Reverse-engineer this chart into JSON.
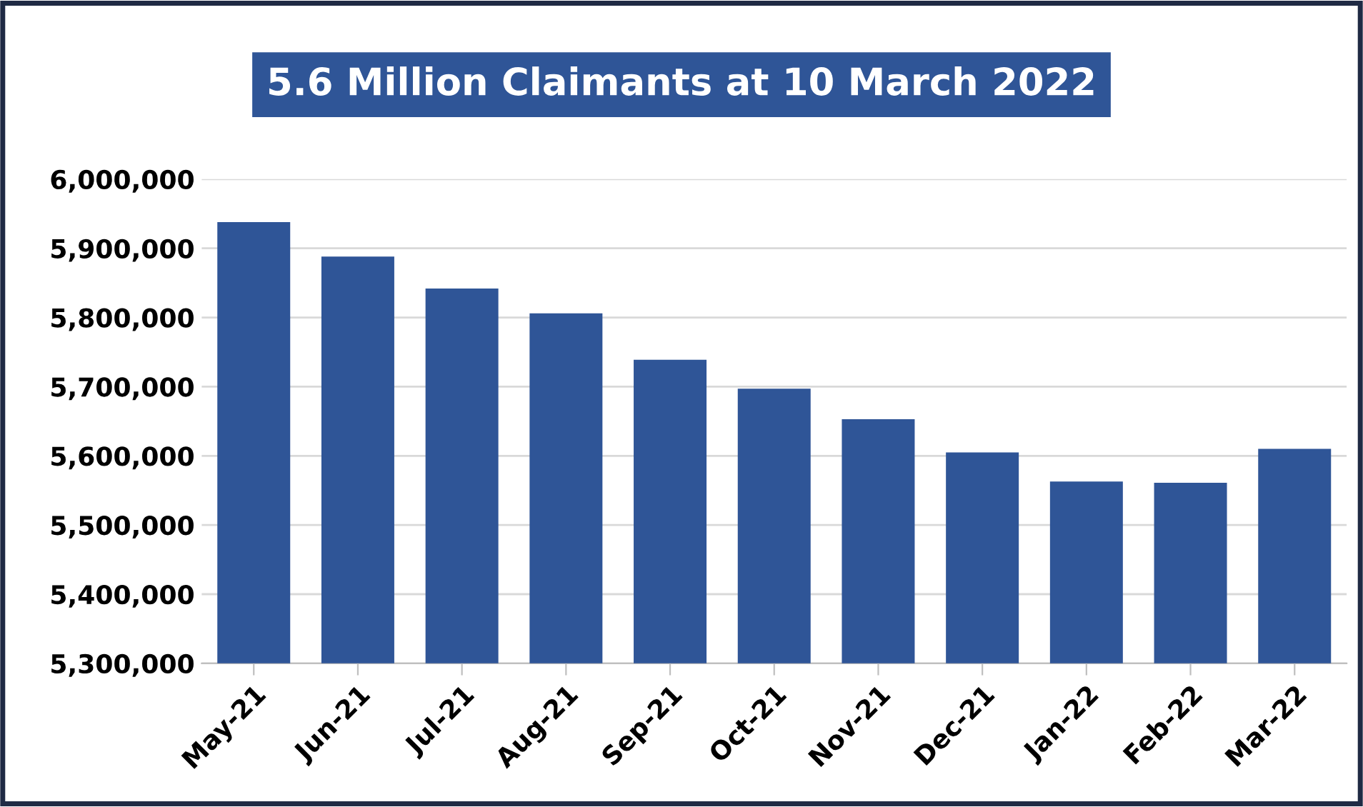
{
  "chart_data": {
    "type": "bar",
    "title": "5.6 Million Claimants at 10 March 2022",
    "categories": [
      "May-21",
      "Jun-21",
      "Jul-21",
      "Aug-21",
      "Sep-21",
      "Oct-21",
      "Nov-21",
      "Dec-21",
      "Jan-22",
      "Feb-22",
      "Mar-22"
    ],
    "values": [
      5938000,
      5888000,
      5842000,
      5806000,
      5739000,
      5697000,
      5653000,
      5605000,
      5563000,
      5561000,
      5610000
    ],
    "color": "#2f5597",
    "ylim": [
      5300000,
      6000000
    ],
    "yticks": [
      {
        "value": 5300000,
        "label": "5,300,000"
      },
      {
        "value": 5400000,
        "label": "5,400,000"
      },
      {
        "value": 5500000,
        "label": "5,500,000"
      },
      {
        "value": 5600000,
        "label": "5,600,000"
      },
      {
        "value": 5700000,
        "label": "5,700,000"
      },
      {
        "value": 5800000,
        "label": "5,800,000"
      },
      {
        "value": 5900000,
        "label": "5,900,000"
      },
      {
        "value": 6000000,
        "label": "6,000,000"
      }
    ],
    "grid": "y"
  }
}
